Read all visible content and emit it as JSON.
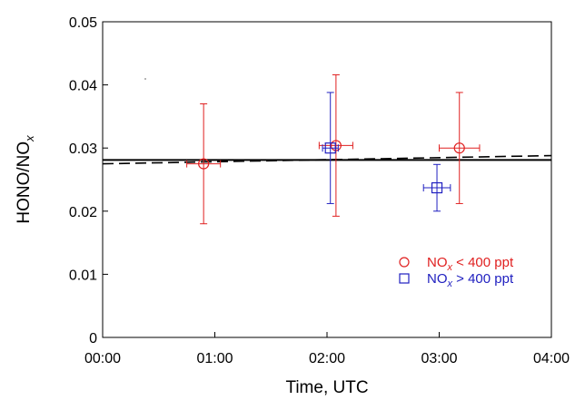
{
  "chart_data": {
    "type": "scatter",
    "title": "",
    "xlabel": "Time, UTC",
    "ylabel": "HONO/NO",
    "ylabel_subscript": "x",
    "xlim": [
      0,
      4
    ],
    "ylim": [
      0,
      0.05
    ],
    "x_ticks": [
      0,
      1,
      2,
      3,
      4
    ],
    "x_tick_labels": [
      "00:00",
      "01:00",
      "02:00",
      "03:00",
      "04:00"
    ],
    "y_ticks": [
      0,
      0.01,
      0.02,
      0.03,
      0.04,
      0.05
    ],
    "y_tick_labels": [
      "0",
      "0.01",
      "0.02",
      "0.03",
      "0.04",
      "0.05"
    ],
    "grid": false,
    "legend_position": "bottom-right",
    "series": [
      {
        "name": "NOx < 400 ppt",
        "legend_prefix": "NO",
        "legend_sub": "x",
        "legend_suffix": " < 400 ppt",
        "marker": "circle",
        "color": "#e02020",
        "points": [
          {
            "x": 0.9,
            "y": 0.0275,
            "xerr": 0.15,
            "yerr_low": 0.0095,
            "yerr_high": 0.0095
          },
          {
            "x": 2.08,
            "y": 0.0304,
            "xerr": 0.15,
            "yerr_low": 0.0112,
            "yerr_high": 0.0112
          },
          {
            "x": 3.18,
            "y": 0.03,
            "xerr": 0.18,
            "yerr_low": 0.0088,
            "yerr_high": 0.0088
          }
        ]
      },
      {
        "name": "NOx > 400 ppt",
        "legend_prefix": "NO",
        "legend_sub": "x",
        "legend_suffix": " > 400 ppt",
        "marker": "square",
        "color": "#2020c0",
        "points": [
          {
            "x": 2.03,
            "y": 0.03,
            "xerr": 0.07,
            "yerr_low": 0.0088,
            "yerr_high": 0.0088
          },
          {
            "x": 2.98,
            "y": 0.0237,
            "xerr": 0.12,
            "yerr_low": 0.0037,
            "yerr_high": 0.0037
          }
        ]
      }
    ],
    "lines": [
      {
        "name": "solid fit",
        "style": "solid",
        "color": "#000000",
        "x": [
          0,
          4
        ],
        "y": [
          0.0281,
          0.0281
        ]
      },
      {
        "name": "dashed fit",
        "style": "dashed",
        "color": "#000000",
        "x": [
          0,
          4
        ],
        "y": [
          0.0275,
          0.0288
        ]
      }
    ]
  }
}
